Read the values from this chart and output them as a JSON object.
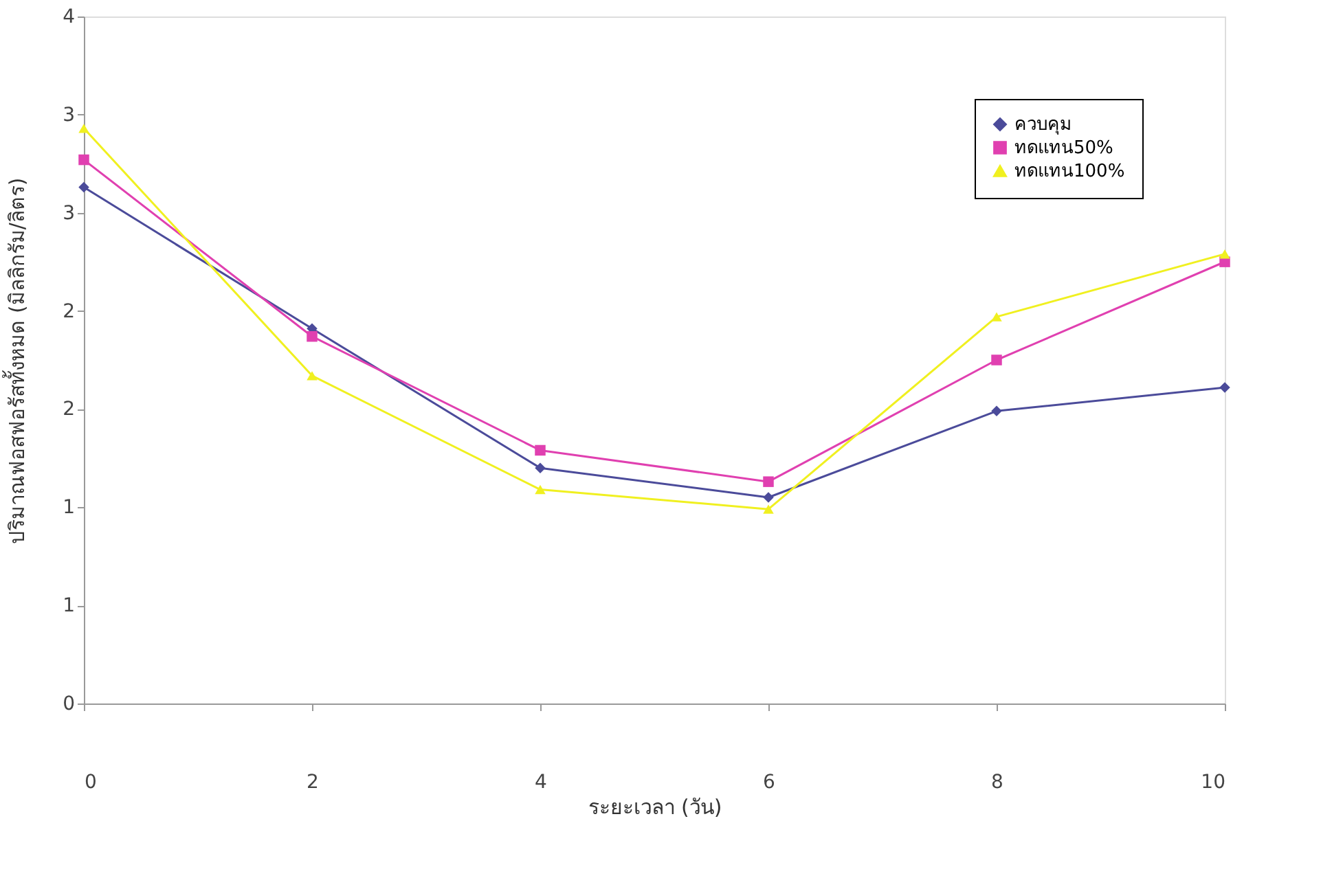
{
  "chart_data": {
    "type": "line",
    "xlabel": "ระยะเวลา (วัน)",
    "ylabel": "ปริมาณฟอสฟอรัสทั้งหมด (มิลลิกรัม/ลิตร)",
    "x": [
      0,
      2,
      4,
      6,
      8,
      10
    ],
    "series": [
      {
        "name": "ควบคุม",
        "color": "#4b4b9a",
        "marker": "diamond",
        "values": [
          2.63,
          1.91,
          1.2,
          1.05,
          1.49,
          1.61
        ]
      },
      {
        "name": "ทดแทน50%",
        "color": "#e040b0",
        "marker": "square",
        "values": [
          2.77,
          1.87,
          1.29,
          1.13,
          1.75,
          2.25
        ]
      },
      {
        "name": "ทดแทน100%",
        "color": "#f0f020",
        "marker": "triangle",
        "values": [
          2.93,
          1.67,
          1.09,
          0.99,
          1.97,
          2.29
        ]
      }
    ],
    "xlim": [
      0,
      10
    ],
    "xticks": [
      0,
      2,
      4,
      6,
      8,
      10
    ],
    "ylim": [
      0,
      3.5
    ],
    "yticks": [
      0,
      {
        "value": 0.5,
        "label": "1"
      },
      1,
      {
        "value": 1.5,
        "label": "2"
      },
      2,
      {
        "value": 2.5,
        "label": "3"
      },
      3,
      {
        "value": 3.5,
        "label": "4"
      }
    ],
    "grid": false,
    "legend": "top right",
    "line_style": "solid"
  }
}
